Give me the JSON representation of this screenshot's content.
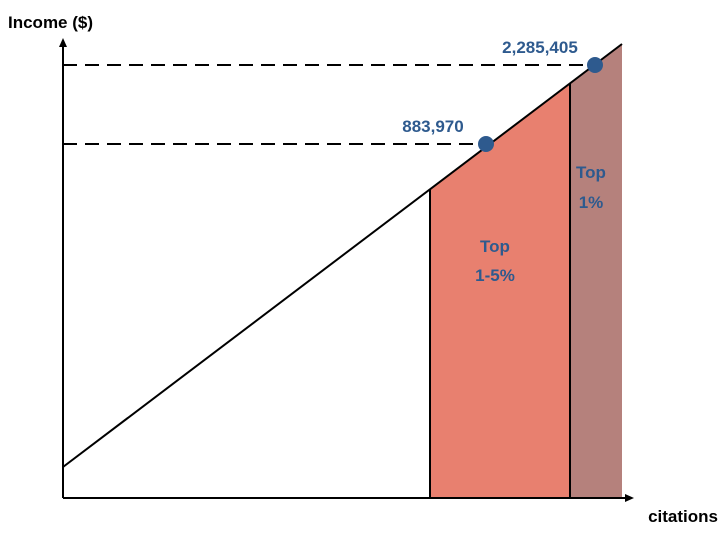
{
  "axes": {
    "y_label": "Income ($)",
    "x_label": "citations"
  },
  "points": [
    {
      "label": "883,970"
    },
    {
      "label": "2,285,405"
    }
  ],
  "regions": [
    {
      "lines": [
        "Top",
        "1-5%"
      ]
    },
    {
      "lines": [
        "Top",
        "1%"
      ]
    }
  ]
}
